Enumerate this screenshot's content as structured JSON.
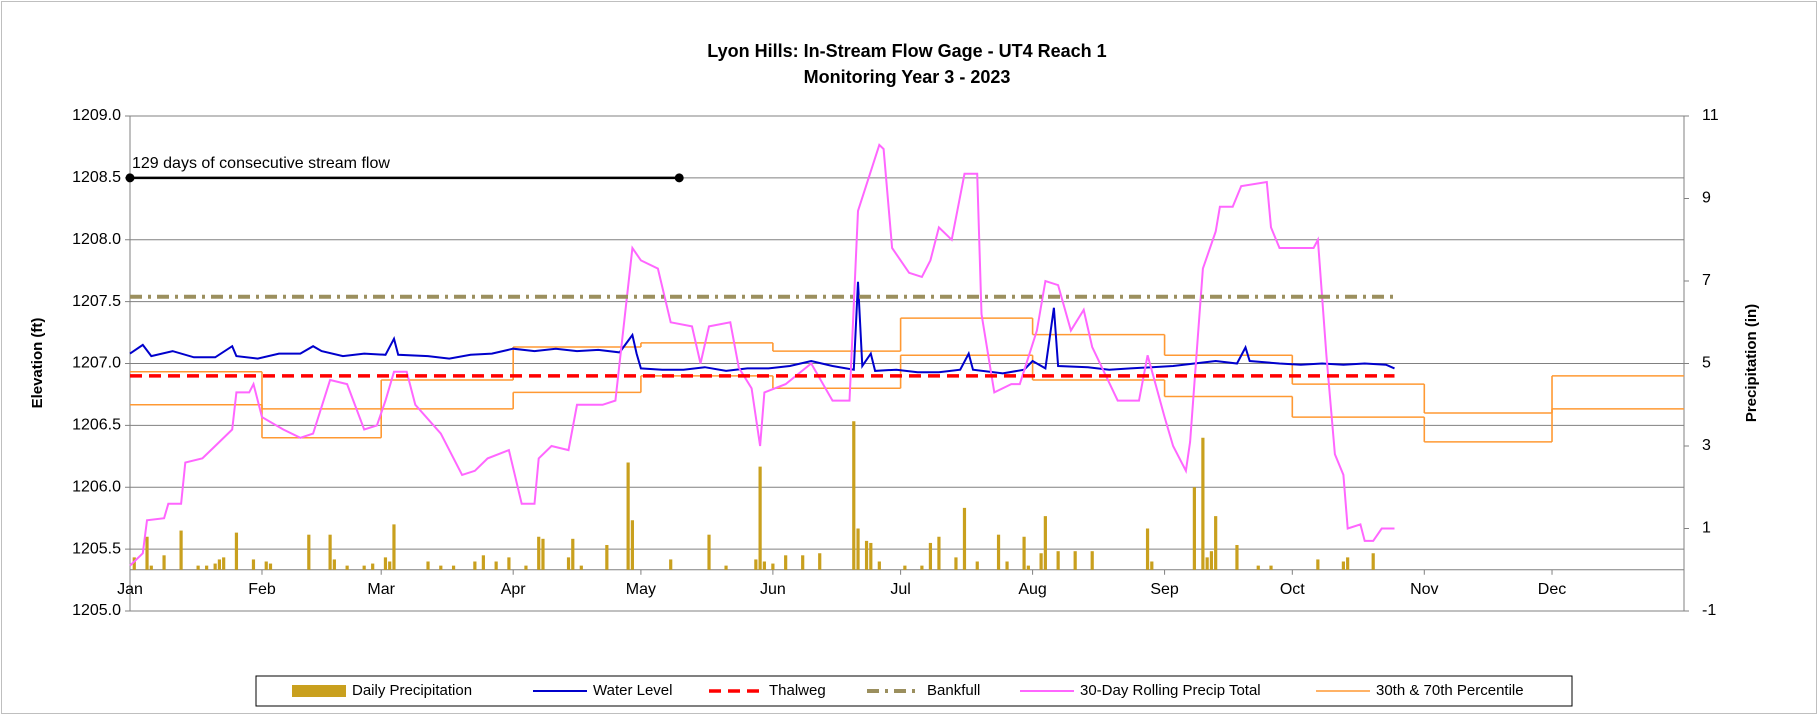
{
  "chart_data": {
    "type": "combo",
    "title": "Lyon Hills: In-Stream Flow Gage - UT4 Reach 1",
    "subtitle": "Monitoring Year 3 - 2023",
    "ylabel": "Elevation (ft)",
    "y2label": "Precipitation (in)",
    "xlim": [
      0,
      365
    ],
    "xticks": [
      {
        "value": 0,
        "label": "Jan"
      },
      {
        "value": 31,
        "label": "Feb"
      },
      {
        "value": 59,
        "label": "Mar"
      },
      {
        "value": 90,
        "label": "Apr"
      },
      {
        "value": 120,
        "label": "May"
      },
      {
        "value": 151,
        "label": "Jun"
      },
      {
        "value": 181,
        "label": "Jul"
      },
      {
        "value": 212,
        "label": "Aug"
      },
      {
        "value": 243,
        "label": "Sep"
      },
      {
        "value": 273,
        "label": "Oct"
      },
      {
        "value": 304,
        "label": "Nov"
      },
      {
        "value": 334,
        "label": "Dec"
      }
    ],
    "ylim": [
      1205,
      1209
    ],
    "yticks": [
      {
        "value": 1205,
        "label": "1205.0"
      },
      {
        "value": 1205.5,
        "label": "1205.5"
      },
      {
        "value": 1206,
        "label": "1206.0"
      },
      {
        "value": 1206.5,
        "label": "1206.5"
      },
      {
        "value": 1207,
        "label": "1207.0"
      },
      {
        "value": 1207.5,
        "label": "1207.5"
      },
      {
        "value": 1208,
        "label": "1208.0"
      },
      {
        "value": 1208.5,
        "label": "1208.5"
      },
      {
        "value": 1209,
        "label": "1209.0"
      }
    ],
    "y2lim": [
      -1,
      11
    ],
    "y2ticks": [
      -1,
      1,
      3,
      5,
      7,
      9,
      11
    ],
    "grid": true,
    "legend": "bottom",
    "annotation": {
      "text": "129 days of consecutive stream flow",
      "x": [
        0,
        129
      ],
      "y": 1208.5,
      "color": "#000000"
    },
    "series": [
      {
        "name": "Daily Precipitation",
        "style": "bar",
        "axis": "y2",
        "color": "#c9a01e",
        "x": [
          1,
          4,
          5,
          8,
          12,
          16,
          18,
          20,
          21,
          22,
          25,
          29,
          32,
          33,
          42,
          47,
          48,
          51,
          55,
          57,
          60,
          61,
          62,
          70,
          73,
          76,
          81,
          83,
          86,
          89,
          93,
          96,
          97,
          103,
          104,
          106,
          112,
          117,
          118,
          127,
          136,
          140,
          147,
          148,
          149,
          151,
          154,
          158,
          162,
          170,
          171,
          173,
          174,
          176,
          182,
          186,
          188,
          190,
          194,
          196,
          199,
          204,
          206,
          210,
          211,
          214,
          215,
          218,
          222,
          226,
          239,
          240,
          250,
          252,
          253,
          254,
          255,
          260,
          265,
          268,
          279,
          285,
          286,
          292
        ],
        "values": [
          0.3,
          0.8,
          0.1,
          0.35,
          0.95,
          0.1,
          0.1,
          0.15,
          0.25,
          0.3,
          0.9,
          0.25,
          0.2,
          0.15,
          0.85,
          0.85,
          0.25,
          0.1,
          0.1,
          0.15,
          0.3,
          0.2,
          1.1,
          0.2,
          0.1,
          0.1,
          0.2,
          0.35,
          0.2,
          0.3,
          0.1,
          0.8,
          0.75,
          0.3,
          0.75,
          0.1,
          0.6,
          2.6,
          1.2,
          0.25,
          0.85,
          0.1,
          0.25,
          2.5,
          0.2,
          0.15,
          0.35,
          0.35,
          0.4,
          3.6,
          1.0,
          0.7,
          0.65,
          0.2,
          0.1,
          0.1,
          0.65,
          0.8,
          0.3,
          1.5,
          0.2,
          0.85,
          0.2,
          0.8,
          0.1,
          0.4,
          1.3,
          0.45,
          0.45,
          0.45,
          1.0,
          0.2,
          2.0,
          3.2,
          0.3,
          0.45,
          1.3,
          0.6,
          0.1,
          0.1,
          0.25,
          0.2,
          0.3,
          0.4
        ]
      },
      {
        "name": "Water Level",
        "style": "line",
        "axis": "y",
        "color": "#0000cc",
        "x": [
          0,
          3,
          5,
          10,
          15,
          20,
          24,
          25,
          30,
          35,
          40,
          43,
          45,
          50,
          55,
          60,
          62,
          63,
          70,
          75,
          80,
          85,
          90,
          95,
          100,
          105,
          110,
          115,
          118,
          119,
          120,
          125,
          130,
          135,
          140,
          145,
          150,
          155,
          160,
          165,
          170,
          171,
          172,
          174,
          175,
          180,
          185,
          190,
          195,
          197,
          198,
          205,
          210,
          212,
          215,
          217,
          218,
          225,
          230,
          235,
          240,
          245,
          250,
          255,
          260,
          262,
          263,
          270,
          275,
          280,
          285,
          290,
          295,
          297
        ],
        "values": [
          1207.08,
          1207.15,
          1207.06,
          1207.1,
          1207.05,
          1207.05,
          1207.14,
          1207.06,
          1207.04,
          1207.08,
          1207.08,
          1207.14,
          1207.1,
          1207.06,
          1207.08,
          1207.07,
          1207.2,
          1207.07,
          1207.06,
          1207.04,
          1207.07,
          1207.08,
          1207.12,
          1207.1,
          1207.12,
          1207.1,
          1207.11,
          1207.09,
          1207.23,
          1207.08,
          1206.96,
          1206.95,
          1206.95,
          1206.97,
          1206.94,
          1206.96,
          1206.96,
          1206.98,
          1207.02,
          1206.98,
          1206.95,
          1207.66,
          1206.98,
          1207.08,
          1206.94,
          1206.95,
          1206.93,
          1206.93,
          1206.95,
          1207.08,
          1206.95,
          1206.92,
          1206.95,
          1207.02,
          1206.96,
          1207.45,
          1206.98,
          1206.97,
          1206.95,
          1206.96,
          1206.97,
          1206.98,
          1207.0,
          1207.02,
          1207.0,
          1207.13,
          1207.02,
          1207.0,
          1206.99,
          1207.0,
          1206.99,
          1207.0,
          1206.99,
          1206.96
        ]
      },
      {
        "name": "Thalweg",
        "style": "dash",
        "axis": "y",
        "color": "#ff0000",
        "x": [
          0,
          297
        ],
        "values": [
          1206.9,
          1206.9
        ]
      },
      {
        "name": "Bankfull",
        "style": "dashdot",
        "axis": "y",
        "color": "#9b8f5e",
        "x": [
          0,
          297
        ],
        "values": [
          1207.54,
          1207.54
        ]
      },
      {
        "name": "30-Day Rolling Precip Total",
        "style": "line",
        "axis": "y2",
        "color": "#ff66ff",
        "x": [
          0,
          3,
          4,
          8,
          9,
          12,
          13,
          17,
          20,
          24,
          25,
          28,
          29,
          31,
          36,
          40,
          43,
          47,
          51,
          55,
          58,
          60,
          62,
          65,
          67,
          73,
          78,
          81,
          84,
          89,
          92,
          95,
          96,
          99,
          103,
          105,
          111,
          114,
          118,
          120,
          124,
          127,
          132,
          134,
          136,
          141,
          143,
          146,
          148,
          149,
          154,
          160,
          165,
          169,
          171,
          176,
          177,
          179,
          183,
          186,
          188,
          190,
          193,
          196,
          199,
          200,
          203,
          207,
          209,
          213,
          215,
          218,
          221,
          224,
          226,
          232,
          237,
          239,
          243,
          245,
          248,
          249,
          251,
          252,
          255,
          256,
          259,
          261,
          267,
          268,
          270,
          278,
          279,
          281,
          283,
          285,
          286,
          289,
          290,
          292,
          294,
          297
        ],
        "values": [
          0.1,
          0.4,
          1.2,
          1.25,
          1.6,
          1.6,
          2.6,
          2.7,
          3.0,
          3.4,
          4.3,
          4.3,
          4.5,
          3.7,
          3.4,
          3.2,
          3.3,
          4.6,
          4.5,
          3.4,
          3.5,
          4.1,
          4.8,
          4.8,
          4.0,
          3.3,
          2.3,
          2.4,
          2.7,
          2.9,
          1.6,
          1.6,
          2.7,
          3.0,
          2.9,
          4.0,
          4.0,
          4.1,
          7.8,
          7.5,
          7.3,
          6.0,
          5.9,
          5.0,
          5.9,
          6.0,
          4.9,
          4.4,
          3.0,
          4.3,
          4.5,
          5.0,
          4.1,
          4.1,
          8.7,
          10.3,
          10.2,
          7.8,
          7.2,
          7.1,
          7.5,
          8.3,
          8.0,
          9.6,
          9.6,
          6.2,
          4.3,
          4.5,
          4.5,
          5.8,
          7.0,
          6.9,
          5.8,
          6.3,
          5.4,
          4.1,
          4.1,
          5.2,
          3.7,
          3.0,
          2.4,
          3.1,
          5.9,
          7.3,
          8.2,
          8.8,
          8.8,
          9.3,
          9.4,
          8.3,
          7.8,
          7.8,
          8.0,
          5.2,
          2.8,
          2.3,
          1.0,
          1.1,
          0.7,
          0.7,
          1.0,
          1.0
        ]
      },
      {
        "name": "30th & 70th Percentile",
        "style": "step",
        "axis": "y2",
        "color": "#ff9933",
        "x": [
          0,
          31,
          59,
          90,
          120,
          151,
          181,
          212,
          243,
          273,
          304,
          334
        ],
        "upper": [
          4.8,
          3.9,
          4.6,
          5.4,
          5.5,
          5.3,
          6.1,
          5.7,
          5.2,
          4.5,
          3.8,
          4.7
        ],
        "lower": [
          4.0,
          3.2,
          3.9,
          4.3,
          4.7,
          4.4,
          5.2,
          4.6,
          4.2,
          3.7,
          3.1,
          3.9
        ]
      }
    ]
  }
}
